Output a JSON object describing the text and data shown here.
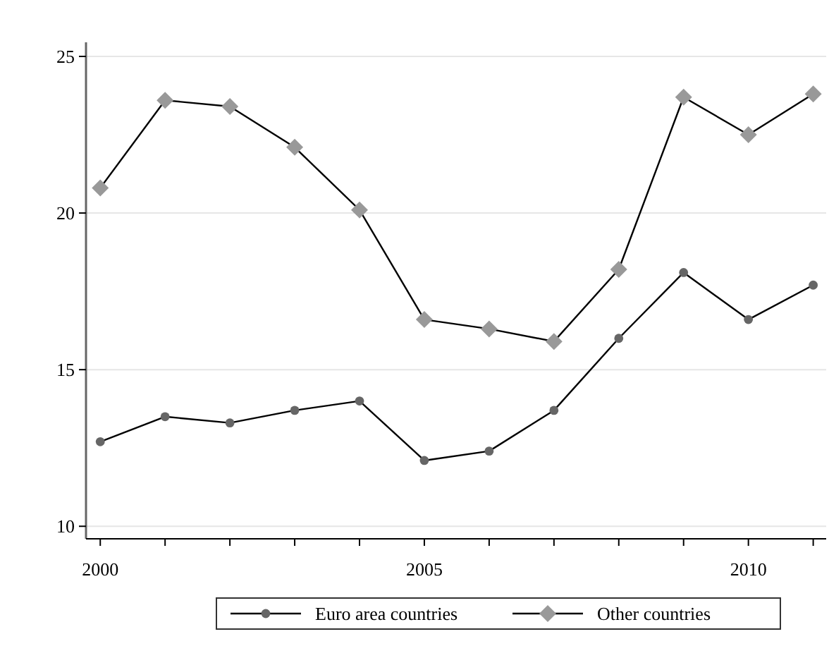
{
  "chart_data": {
    "type": "line",
    "xlim": [
      1999.78,
      2011.2
    ],
    "ylim": [
      9.6,
      25.45
    ],
    "x": [
      2000,
      2001,
      2002,
      2003,
      2004,
      2005,
      2006,
      2007,
      2008,
      2009,
      2010,
      2011
    ],
    "xticks": [
      2000,
      {
        "value": 2001,
        "label": null
      },
      {
        "value": 2002,
        "label": null
      },
      {
        "value": 2003,
        "label": null
      },
      {
        "value": 2004,
        "label": null
      },
      2005,
      {
        "value": 2006,
        "label": null
      },
      {
        "value": 2007,
        "label": null
      },
      {
        "value": 2008,
        "label": null
      },
      {
        "value": 2009,
        "label": null
      },
      2010,
      {
        "value": 2011,
        "label": null
      }
    ],
    "yticks": [
      10,
      15,
      20,
      25
    ],
    "grid": "y",
    "legend": "bottom",
    "series": [
      {
        "name": "Euro area countries",
        "color": "#666666",
        "marker": "circle",
        "values": [
          12.7,
          13.5,
          13.3,
          13.7,
          14.0,
          12.1,
          12.4,
          13.7,
          16.0,
          18.1,
          16.6,
          17.7
        ]
      },
      {
        "name": "Other countries",
        "color": "#999999",
        "marker": "diamond",
        "values": [
          20.8,
          23.6,
          23.4,
          22.1,
          20.1,
          16.6,
          16.3,
          15.9,
          18.2,
          23.7,
          22.5,
          23.8
        ]
      }
    ]
  }
}
